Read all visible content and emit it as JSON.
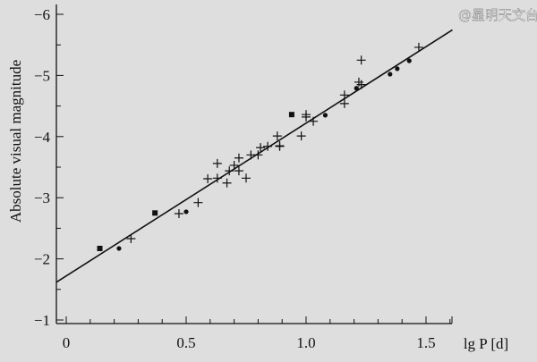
{
  "chart_data": {
    "type": "scatter",
    "xlabel": "lg P [d]",
    "ylabel": "Absolute visual magnitude",
    "xlim": [
      -0.04,
      1.62
    ],
    "ylim": [
      -1,
      -6
    ],
    "y_inverted": true,
    "grid": false,
    "x_ticks": [
      "0",
      "0.5",
      "1.0",
      "1.5"
    ],
    "x_tick_values": [
      0,
      0.5,
      1.0,
      1.5
    ],
    "y_ticks": [
      "−1",
      "−2",
      "−3",
      "−4",
      "−5",
      "−6"
    ],
    "y_tick_values": [
      -1,
      -2,
      -3,
      -4,
      -5,
      -6
    ],
    "fit_line": {
      "slope": -2.5,
      "intercept": -1.72,
      "x_range": [
        -0.04,
        1.61
      ]
    },
    "series": [
      {
        "marker": "square",
        "points": [
          [
            0.14,
            -2.17
          ],
          [
            0.37,
            -2.75
          ],
          [
            0.94,
            -4.36
          ]
        ]
      },
      {
        "marker": "dot",
        "points": [
          [
            0.22,
            -2.17
          ],
          [
            0.5,
            -2.77
          ],
          [
            1.08,
            -4.35
          ],
          [
            1.21,
            -4.79
          ],
          [
            1.35,
            -5.02
          ],
          [
            1.38,
            -5.11
          ],
          [
            1.43,
            -5.24
          ]
        ]
      },
      {
        "marker": "cross",
        "points": [
          [
            0.27,
            -2.33
          ],
          [
            0.47,
            -2.74
          ],
          [
            0.55,
            -2.92
          ],
          [
            0.59,
            -3.31
          ],
          [
            0.63,
            -3.56
          ],
          [
            0.63,
            -3.32
          ],
          [
            0.67,
            -3.24
          ],
          [
            0.68,
            -3.44
          ],
          [
            0.7,
            -3.53
          ],
          [
            0.72,
            -3.65
          ],
          [
            0.72,
            -3.44
          ],
          [
            0.75,
            -3.32
          ],
          [
            0.77,
            -3.7
          ],
          [
            0.8,
            -3.7
          ],
          [
            0.81,
            -3.82
          ],
          [
            0.84,
            -3.84
          ],
          [
            0.89,
            -3.84
          ],
          [
            0.88,
            -4.01
          ],
          [
            0.89,
            -3.85
          ],
          [
            0.98,
            -4.01
          ],
          [
            1.0,
            -4.36
          ],
          [
            1.0,
            -4.32
          ],
          [
            1.03,
            -4.25
          ],
          [
            1.16,
            -4.68
          ],
          [
            1.16,
            -4.54
          ],
          [
            1.23,
            -5.25
          ],
          [
            1.22,
            -4.89
          ],
          [
            1.23,
            -4.85
          ],
          [
            1.47,
            -5.46
          ]
        ]
      }
    ]
  },
  "watermark": "@星明天文台",
  "colors": {
    "background": "#dedede",
    "ink": "#111111"
  }
}
